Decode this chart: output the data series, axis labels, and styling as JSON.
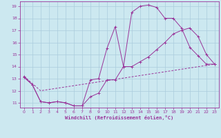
{
  "xlabel": "Windchill (Refroidissement éolien,°C)",
  "background_color": "#cce8f0",
  "grid_color": "#aaccdd",
  "line_color": "#993399",
  "xlim": [
    -0.5,
    23.5
  ],
  "ylim": [
    10.6,
    19.4
  ],
  "xticks": [
    0,
    1,
    2,
    3,
    4,
    5,
    6,
    7,
    8,
    9,
    10,
    11,
    12,
    13,
    14,
    15,
    16,
    17,
    18,
    19,
    20,
    21,
    22,
    23
  ],
  "yticks": [
    11,
    12,
    13,
    14,
    15,
    16,
    17,
    18,
    19
  ],
  "line1_x": [
    0,
    1,
    2,
    3,
    4,
    5,
    6,
    7,
    8,
    9,
    10,
    11,
    12,
    13,
    14,
    15,
    16,
    17,
    18,
    19,
    20,
    21,
    22,
    23
  ],
  "line1_y": [
    13.2,
    12.5,
    11.1,
    11.0,
    11.1,
    11.0,
    10.75,
    10.75,
    12.9,
    13.0,
    15.5,
    17.3,
    14.0,
    18.5,
    19.0,
    19.1,
    18.9,
    18.0,
    18.0,
    17.2,
    15.6,
    14.9,
    14.2,
    14.2
  ],
  "line2_x": [
    0,
    1,
    2,
    3,
    4,
    5,
    6,
    7,
    8,
    9,
    10,
    11,
    12,
    13,
    14,
    15,
    16,
    17,
    18,
    19,
    20,
    21,
    22,
    23
  ],
  "line2_y": [
    13.1,
    12.5,
    11.1,
    11.0,
    11.1,
    11.0,
    10.75,
    10.75,
    11.5,
    11.8,
    12.9,
    12.9,
    14.0,
    14.0,
    14.4,
    14.8,
    15.4,
    16.0,
    16.7,
    17.0,
    17.2,
    16.5,
    15.0,
    14.2
  ],
  "line3_x": [
    0,
    2,
    23
  ],
  "line3_y": [
    13.2,
    12.0,
    14.2
  ]
}
